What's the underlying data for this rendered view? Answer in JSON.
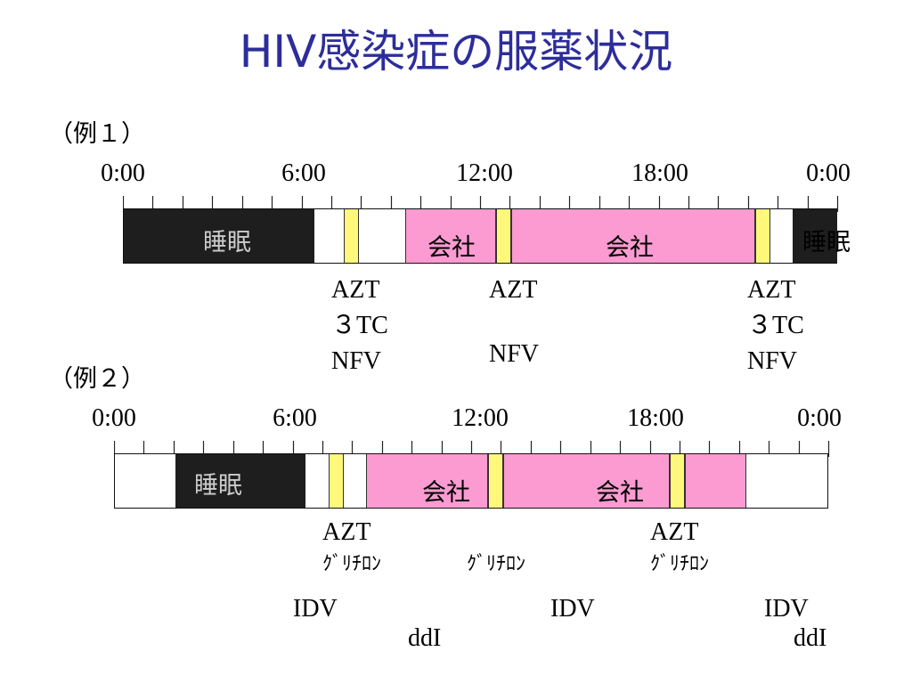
{
  "title": "HIV感染症の服薬状況",
  "example1": {
    "label": "（例１）",
    "ticks": [
      "0:00",
      "6:00",
      "12:00",
      "18:00",
      "0:00"
    ],
    "segments": [
      {
        "kind": "sleep",
        "label": "睡眠"
      },
      {
        "kind": "work",
        "label": "会社"
      },
      {
        "kind": "work",
        "label": "会社"
      },
      {
        "kind": "sleep",
        "label": "睡眠"
      }
    ],
    "doses": [
      {
        "lines": [
          "AZT",
          "３TC",
          "NFV"
        ]
      },
      {
        "lines": [
          "AZT",
          "",
          "NFV"
        ]
      },
      {
        "lines": [
          "AZT",
          "３TC",
          "NFV"
        ]
      }
    ]
  },
  "example2": {
    "label": "（例２）",
    "ticks": [
      "0:00",
      "6:00",
      "12:00",
      "18:00",
      "0:00"
    ],
    "segments": [
      {
        "kind": "sleep",
        "label": "睡眠"
      },
      {
        "kind": "work",
        "label": "会社"
      },
      {
        "kind": "work",
        "label": "会社"
      }
    ],
    "doses": [
      {
        "lines": [
          "AZT",
          "ｸﾞﾘﾁﾛﾝ"
        ]
      },
      {
        "lines": [
          "",
          "ｸﾞﾘﾁﾛﾝ"
        ]
      },
      {
        "lines": [
          "AZT",
          "ｸﾞﾘﾁﾛﾝ"
        ]
      }
    ],
    "other_drugs": [
      {
        "label": "IDV"
      },
      {
        "label": "ddI"
      },
      {
        "label": "IDV"
      },
      {
        "label": "IDV"
      },
      {
        "label": "ddI"
      }
    ]
  },
  "colors": {
    "title": "#2d2d9a",
    "sleep": "#1e1e1e",
    "work": "#fb9bd1",
    "medication": "#fff87a"
  }
}
